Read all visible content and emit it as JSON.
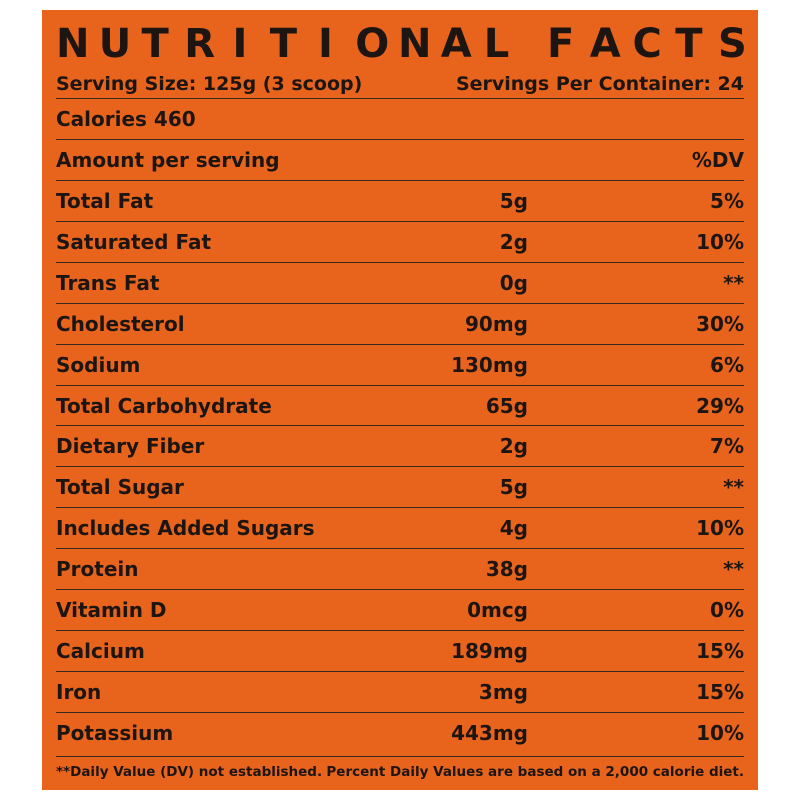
{
  "label": {
    "title_letters": [
      "N",
      "U",
      "T",
      "R",
      "I",
      "T",
      "I",
      "O",
      "N",
      "A",
      "L",
      " ",
      "F",
      "A",
      "C",
      "T",
      "S"
    ],
    "title": "NUTRITIONAL FACTS",
    "serving_size": "Serving Size: 125g (3 scoop)",
    "servings_per_container": "Servings Per Container: 24",
    "calories": "Calories 460",
    "amount_header": "Amount per serving",
    "dv_header": "%DV",
    "nutrients": [
      {
        "name": "Total Fat",
        "amount": "5g",
        "dv": "5%"
      },
      {
        "name": "Saturated Fat",
        "amount": "2g",
        "dv": "10%"
      },
      {
        "name": "Trans Fat",
        "amount": "0g",
        "dv": "**"
      },
      {
        "name": "Cholesterol",
        "amount": "90mg",
        "dv": "30%"
      },
      {
        "name": "Sodium",
        "amount": "130mg",
        "dv": "6%"
      },
      {
        "name": "Total Carbohydrate",
        "amount": "65g",
        "dv": "29%"
      },
      {
        "name": "Dietary Fiber",
        "amount": "2g",
        "dv": "7%"
      },
      {
        "name": "Total Sugar",
        "amount": "5g",
        "dv": "**"
      },
      {
        "name": "Includes Added Sugars",
        "amount": "4g",
        "dv": "10%"
      },
      {
        "name": "Protein",
        "amount": "38g",
        "dv": "**"
      },
      {
        "name": "Vitamin D",
        "amount": "0mcg",
        "dv": "0%"
      },
      {
        "name": "Calcium",
        "amount": "189mg",
        "dv": "15%"
      },
      {
        "name": "Iron",
        "amount": "3mg",
        "dv": "15%"
      },
      {
        "name": "Potassium",
        "amount": "443mg",
        "dv": "10%"
      }
    ],
    "footnote_left": "**Daily Value (DV) not established.",
    "footnote_right": "Percent Daily Values are based on a 2,000 calorie diet.",
    "colors": {
      "background": "#e8641d",
      "text": "#1c1512"
    }
  }
}
